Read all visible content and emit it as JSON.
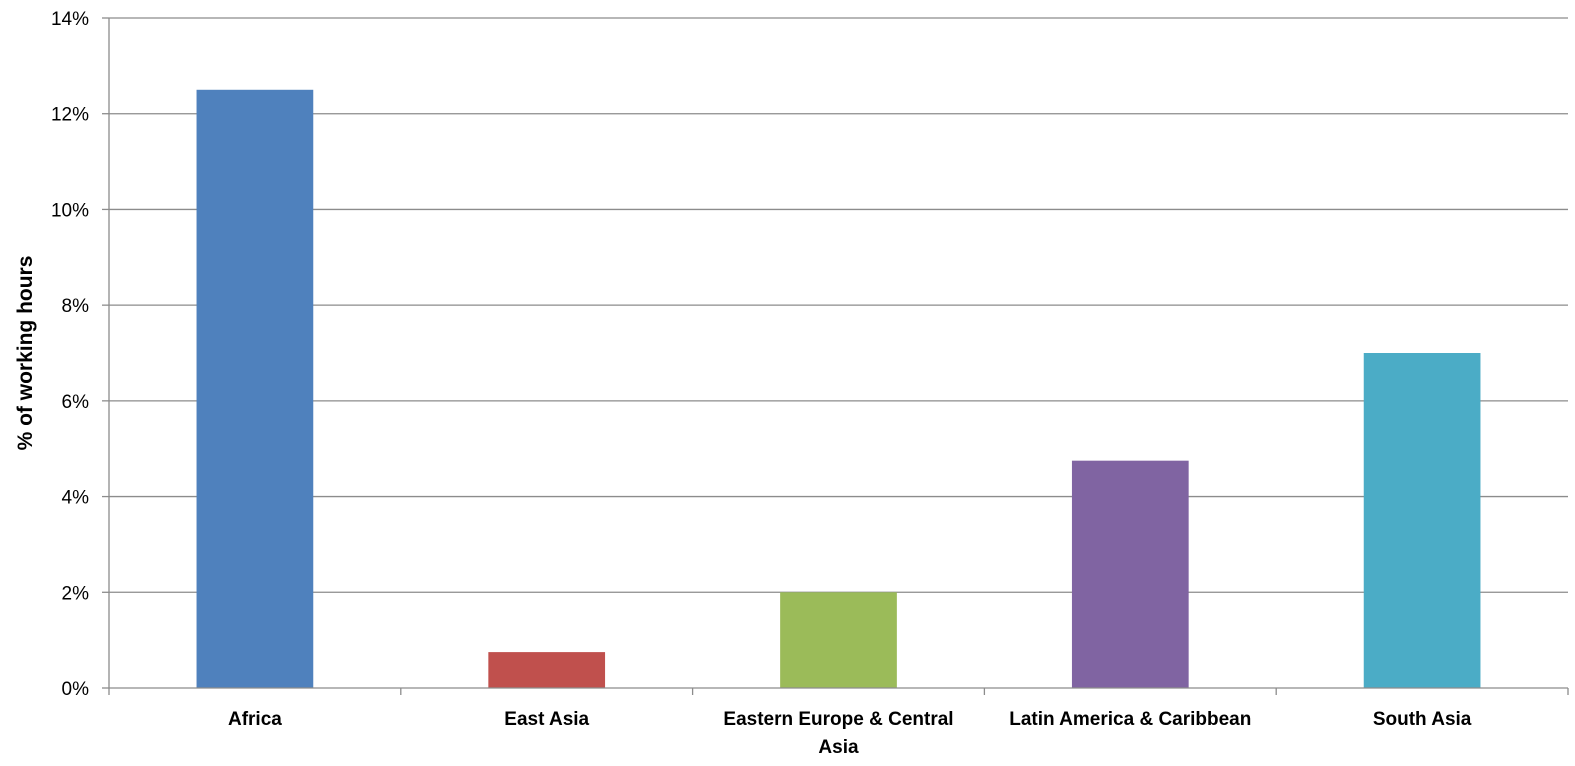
{
  "chart_data": {
    "type": "bar",
    "categories": [
      [
        "Africa"
      ],
      [
        "East Asia"
      ],
      [
        "Eastern Europe & Central",
        "Asia"
      ],
      [
        "Latin America & Caribbean"
      ],
      [
        "South Asia"
      ]
    ],
    "values": [
      12.5,
      0.75,
      2.0,
      4.75,
      7.0
    ],
    "colors": [
      "#4f81bd",
      "#c0504d",
      "#9bbb59",
      "#8064a2",
      "#4bacc6"
    ],
    "ylabel": "% of working hours",
    "ylim": [
      0,
      14
    ],
    "yticks": [
      "0%",
      "2%",
      "4%",
      "6%",
      "8%",
      "10%",
      "12%",
      "14%"
    ],
    "grid": true,
    "legend": "none"
  }
}
